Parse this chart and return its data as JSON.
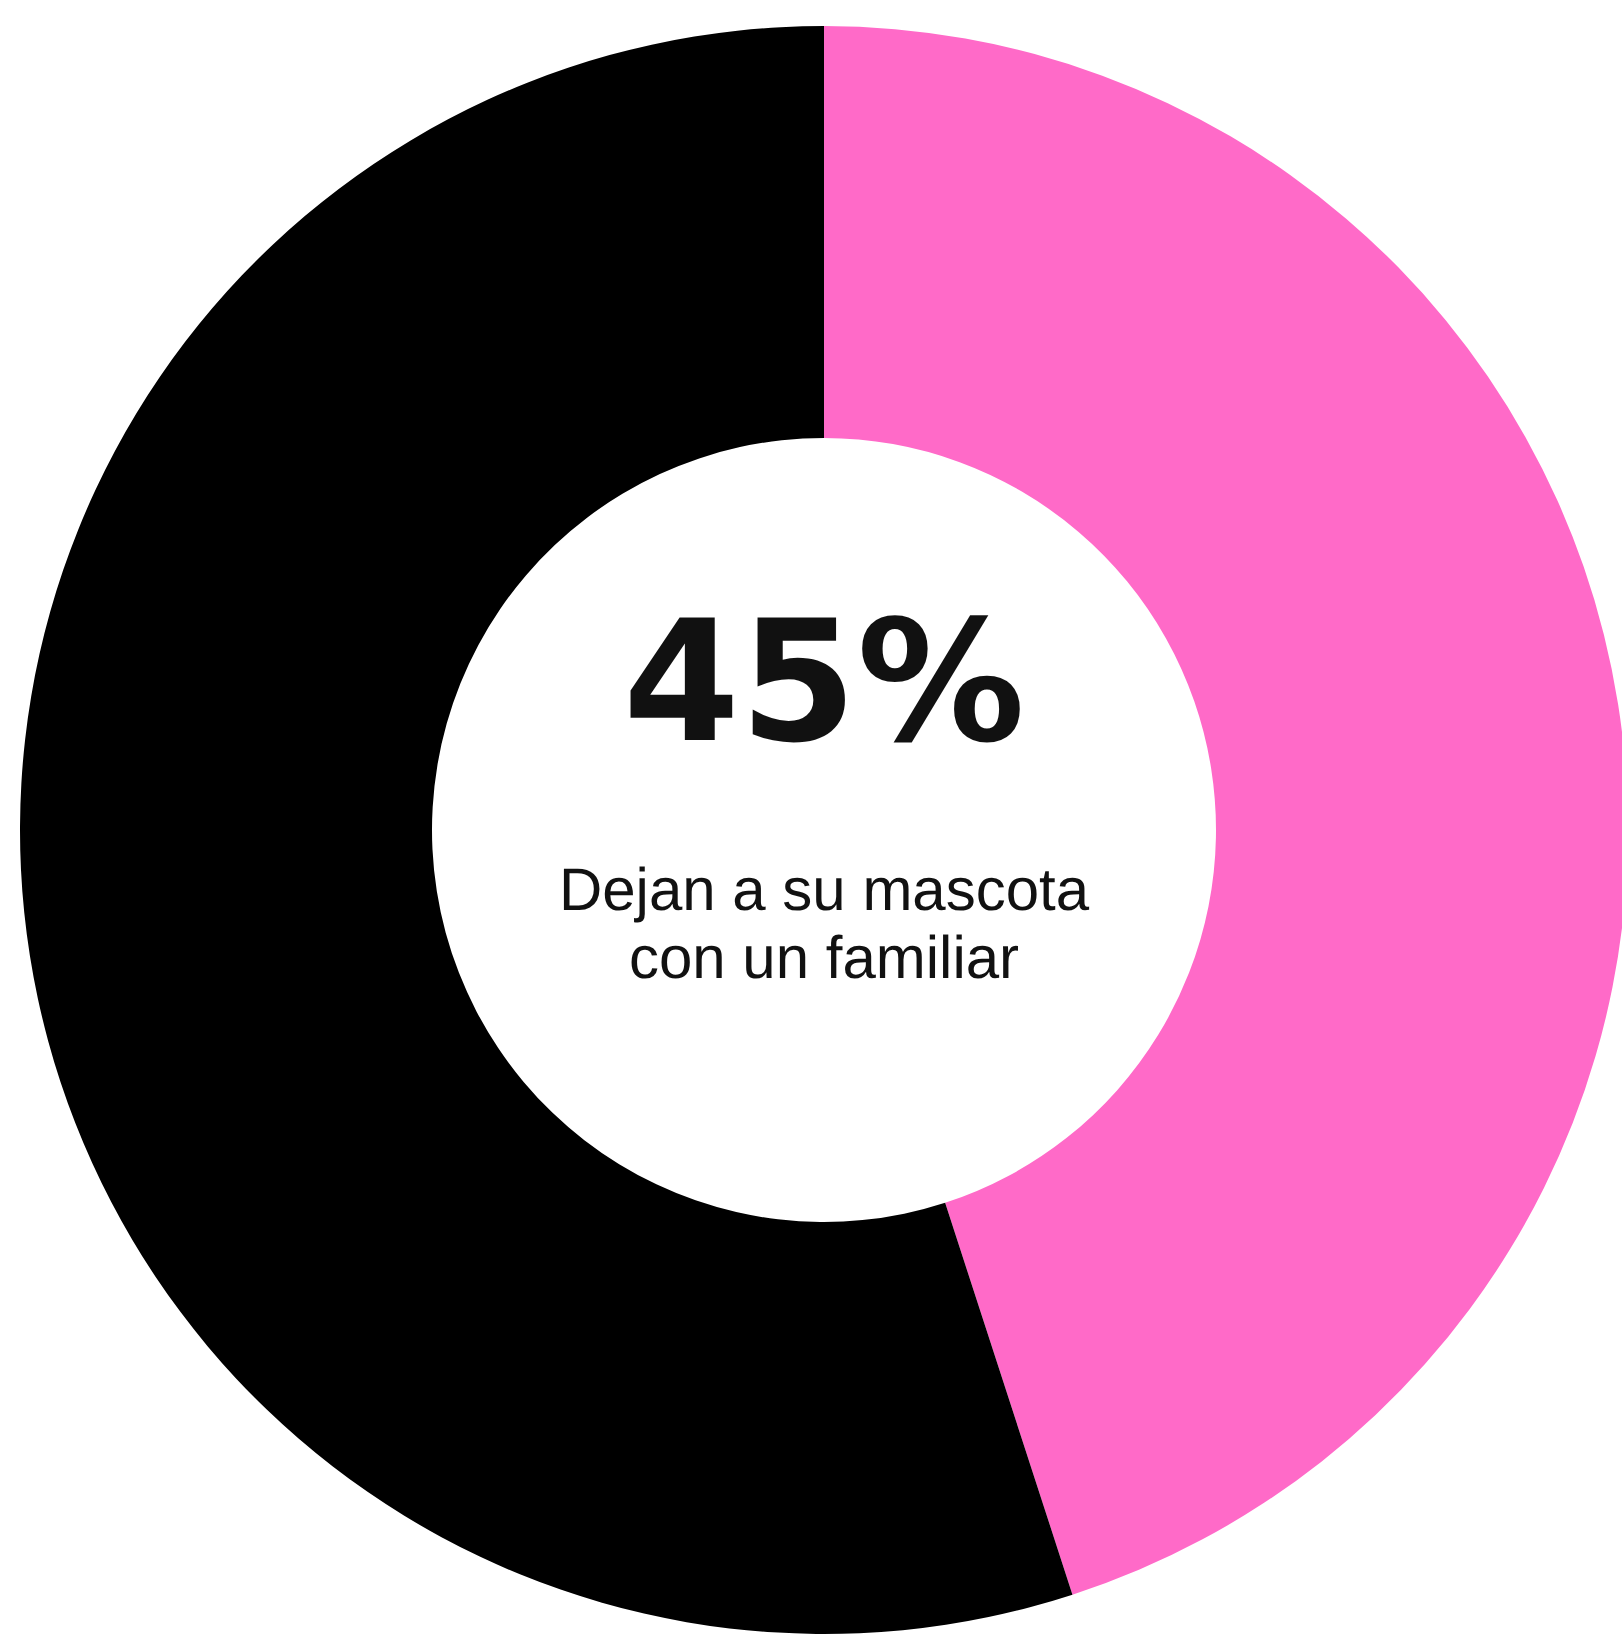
{
  "chart_data": {
    "type": "donut",
    "categories": [
      null,
      null
    ],
    "values": [
      45,
      55
    ],
    "colors": [
      "#ff6ac8",
      "#000000"
    ],
    "value_labels": [
      "45%",
      null
    ],
    "annotations": [
      "Dejan a su mascota con un familiar"
    ]
  }
}
